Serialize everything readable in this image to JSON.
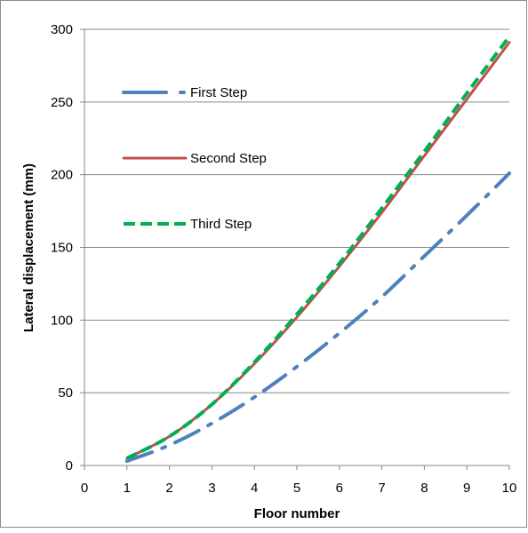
{
  "chart_data": {
    "type": "line",
    "title": "",
    "xlabel": "Floor number",
    "ylabel": "Lateral displacement (mm)",
    "xlim": [
      0,
      10
    ],
    "ylim": [
      0,
      300
    ],
    "xticks": [
      0,
      1,
      2,
      3,
      4,
      5,
      6,
      7,
      8,
      9,
      10
    ],
    "yticks": [
      0,
      50,
      100,
      150,
      200,
      250,
      300
    ],
    "grid": "horizontal",
    "legend_position": "top-left",
    "series": [
      {
        "name": "First Step",
        "color": "#4f81bd",
        "style": "long-dash-dot",
        "x": [
          1,
          2,
          3,
          4,
          5,
          6,
          7,
          8,
          9,
          10
        ],
        "y": [
          3,
          14,
          29,
          47,
          68,
          91,
          116,
          144,
          172,
          201
        ]
      },
      {
        "name": "Second Step",
        "color": "#c0504d",
        "style": "solid",
        "x": [
          1,
          2,
          3,
          4,
          5,
          6,
          7,
          8,
          9,
          10
        ],
        "y": [
          5,
          20,
          42,
          70,
          102,
          137,
          174,
          213,
          252,
          291
        ]
      },
      {
        "name": "Third Step",
        "color": "#00b050",
        "style": "dashed",
        "x": [
          1,
          2,
          3,
          4,
          5,
          6,
          7,
          8,
          9,
          10
        ],
        "y": [
          5,
          20,
          42,
          71,
          104,
          139,
          177,
          216,
          256,
          295
        ]
      }
    ]
  }
}
